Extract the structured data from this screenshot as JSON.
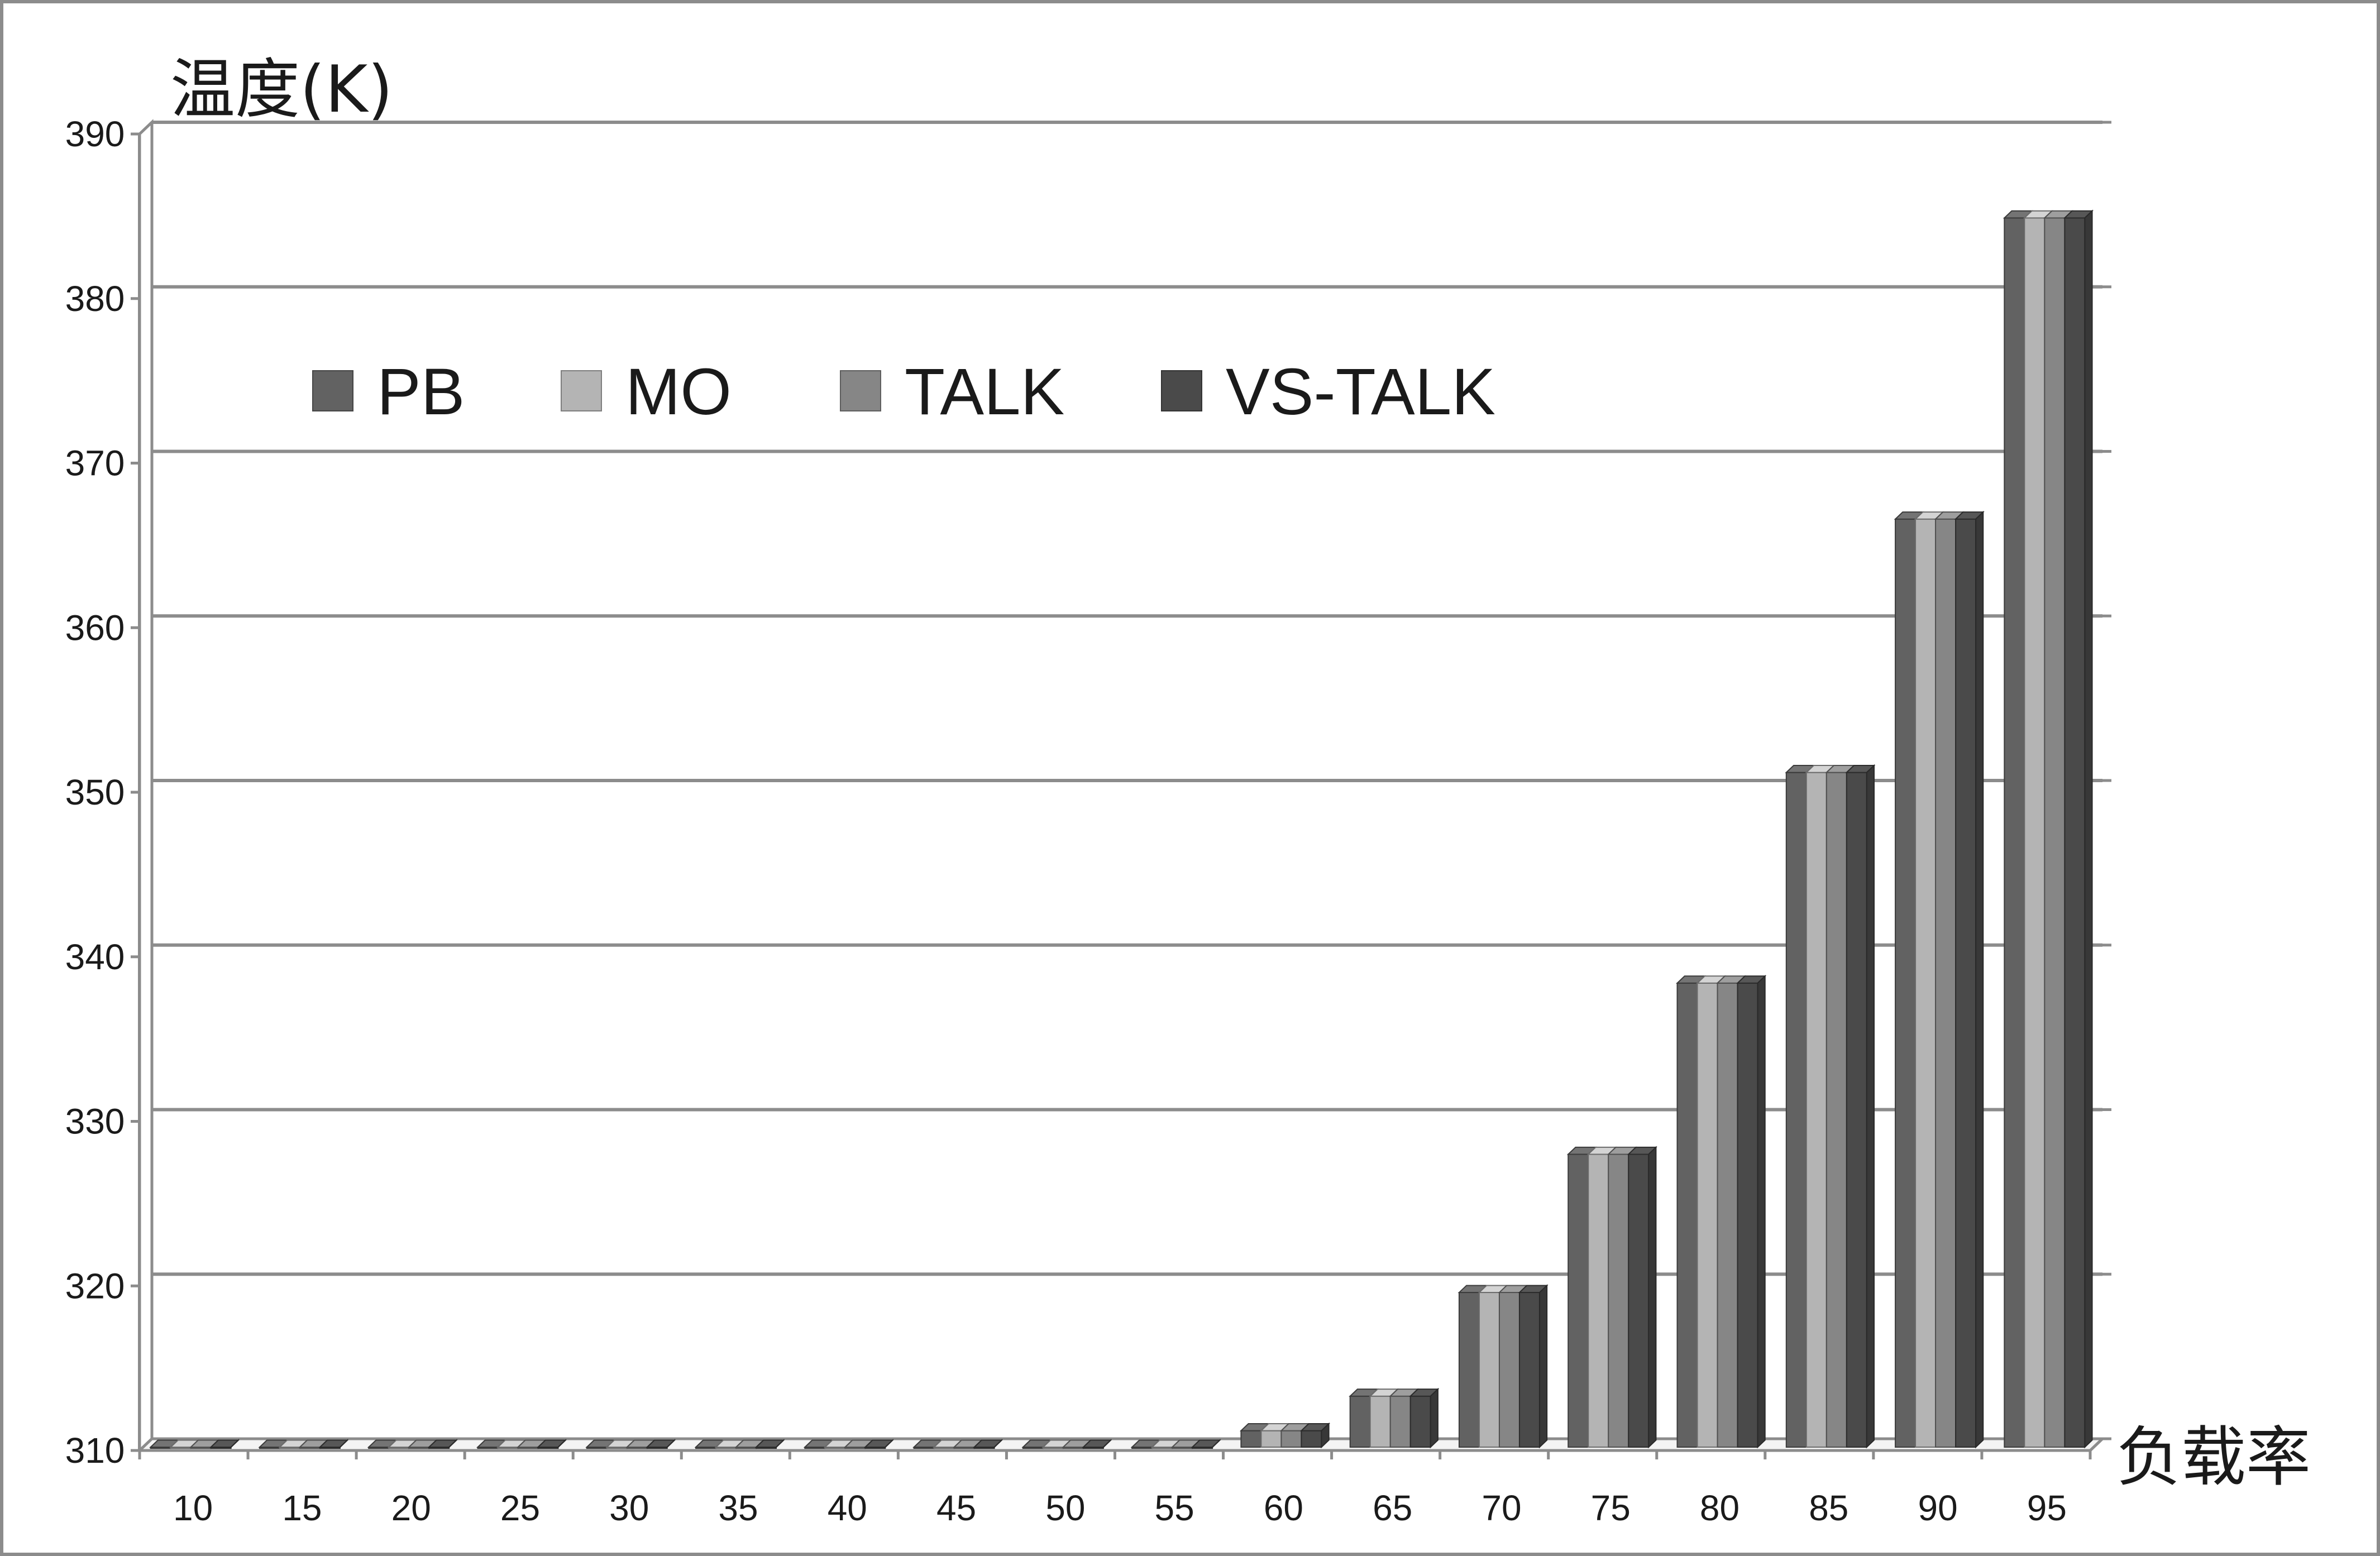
{
  "chart_data": {
    "type": "bar",
    "style": "3d-clustered-column",
    "ylabel": "温度(K)",
    "xlabel": "负载率",
    "categories": [
      "10",
      "15",
      "20",
      "25",
      "30",
      "35",
      "40",
      "45",
      "50",
      "55",
      "60",
      "65",
      "70",
      "75",
      "80",
      "85",
      "90",
      "95"
    ],
    "ylim": [
      310,
      390
    ],
    "yticks": [
      "310",
      "320",
      "330",
      "340",
      "350",
      "360",
      "370",
      "380",
      "390"
    ],
    "grid": true,
    "legend_position": "top-left",
    "series": [
      {
        "name": "PB",
        "color": "#626262",
        "values": [
          310.2,
          310.2,
          310.2,
          310.2,
          310.2,
          310.2,
          310.2,
          310.2,
          310.2,
          310.2,
          311.2,
          313.3,
          319.6,
          328,
          338.4,
          351.2,
          366.6,
          384.9
        ]
      },
      {
        "name": "MO",
        "color": "#b4b4b4",
        "values": [
          310.2,
          310.2,
          310.2,
          310.2,
          310.2,
          310.2,
          310.2,
          310.2,
          310.2,
          310.2,
          311.2,
          313.3,
          319.6,
          328,
          338.4,
          351.2,
          366.6,
          384.9
        ]
      },
      {
        "name": "TALK",
        "color": "#868686",
        "values": [
          310.2,
          310.2,
          310.2,
          310.2,
          310.2,
          310.2,
          310.2,
          310.2,
          310.2,
          310.2,
          311.2,
          313.3,
          319.6,
          328,
          338.4,
          351.2,
          366.6,
          384.9
        ]
      },
      {
        "name": "VS-TALK",
        "color": "#4a4a4a",
        "values": [
          310.2,
          310.2,
          310.2,
          310.2,
          310.2,
          310.2,
          310.2,
          310.2,
          310.2,
          310.2,
          311.2,
          313.3,
          319.6,
          328,
          338.4,
          351.2,
          366.6,
          384.9
        ]
      }
    ]
  }
}
